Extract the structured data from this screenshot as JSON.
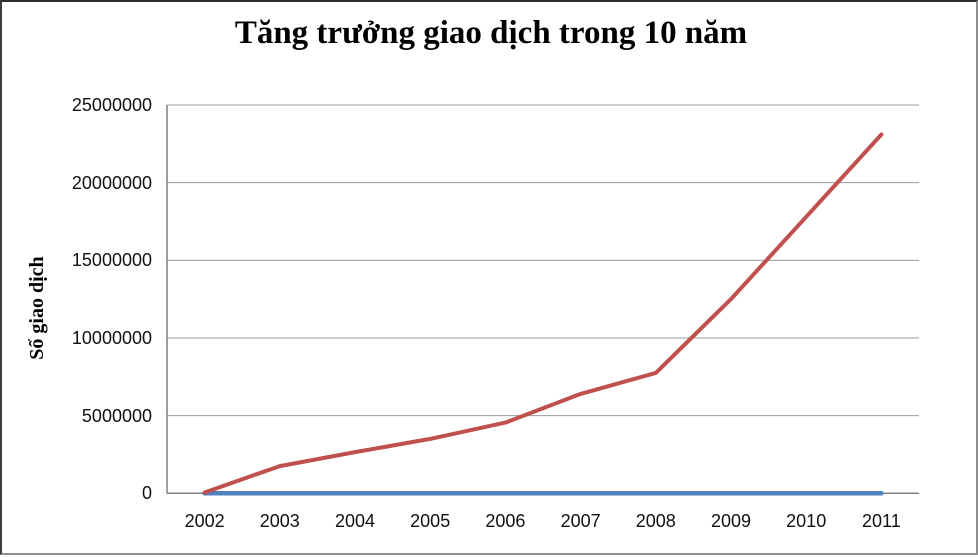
{
  "window": {
    "background": "#ffffff",
    "frame_border_dark": "#3c3c3c",
    "frame_border_light": "#8f8f8f"
  },
  "chart_data": {
    "type": "line",
    "title": "Tăng trưởng giao dịch trong 10 năm",
    "ylabel": "Số giao dịch",
    "xlabel": "",
    "categories": [
      "2002",
      "2003",
      "2004",
      "2005",
      "2006",
      "2007",
      "2008",
      "2009",
      "2010",
      "2011"
    ],
    "series": [
      {
        "name": "blue-flat-series",
        "color": "#4F81BD",
        "stroke_width": 4.5,
        "values": [
          0,
          0,
          0,
          0,
          0,
          0,
          0,
          0,
          0,
          0
        ]
      },
      {
        "name": "red-growth-series",
        "color": "#C0504D",
        "stroke_width": 4,
        "values": [
          50000,
          1750000,
          2650000,
          3500000,
          4550000,
          6400000,
          7750000,
          12500000,
          17800000,
          23100000
        ]
      }
    ],
    "ylim": [
      0,
      25000000
    ],
    "ytick_step": 5000000,
    "yticks": [
      "0",
      "5000000",
      "10000000",
      "15000000",
      "20000000",
      "25000000"
    ],
    "grid": true,
    "legend": "none",
    "gridline_color": "#9c9c9c",
    "axis_color": "#808080"
  }
}
